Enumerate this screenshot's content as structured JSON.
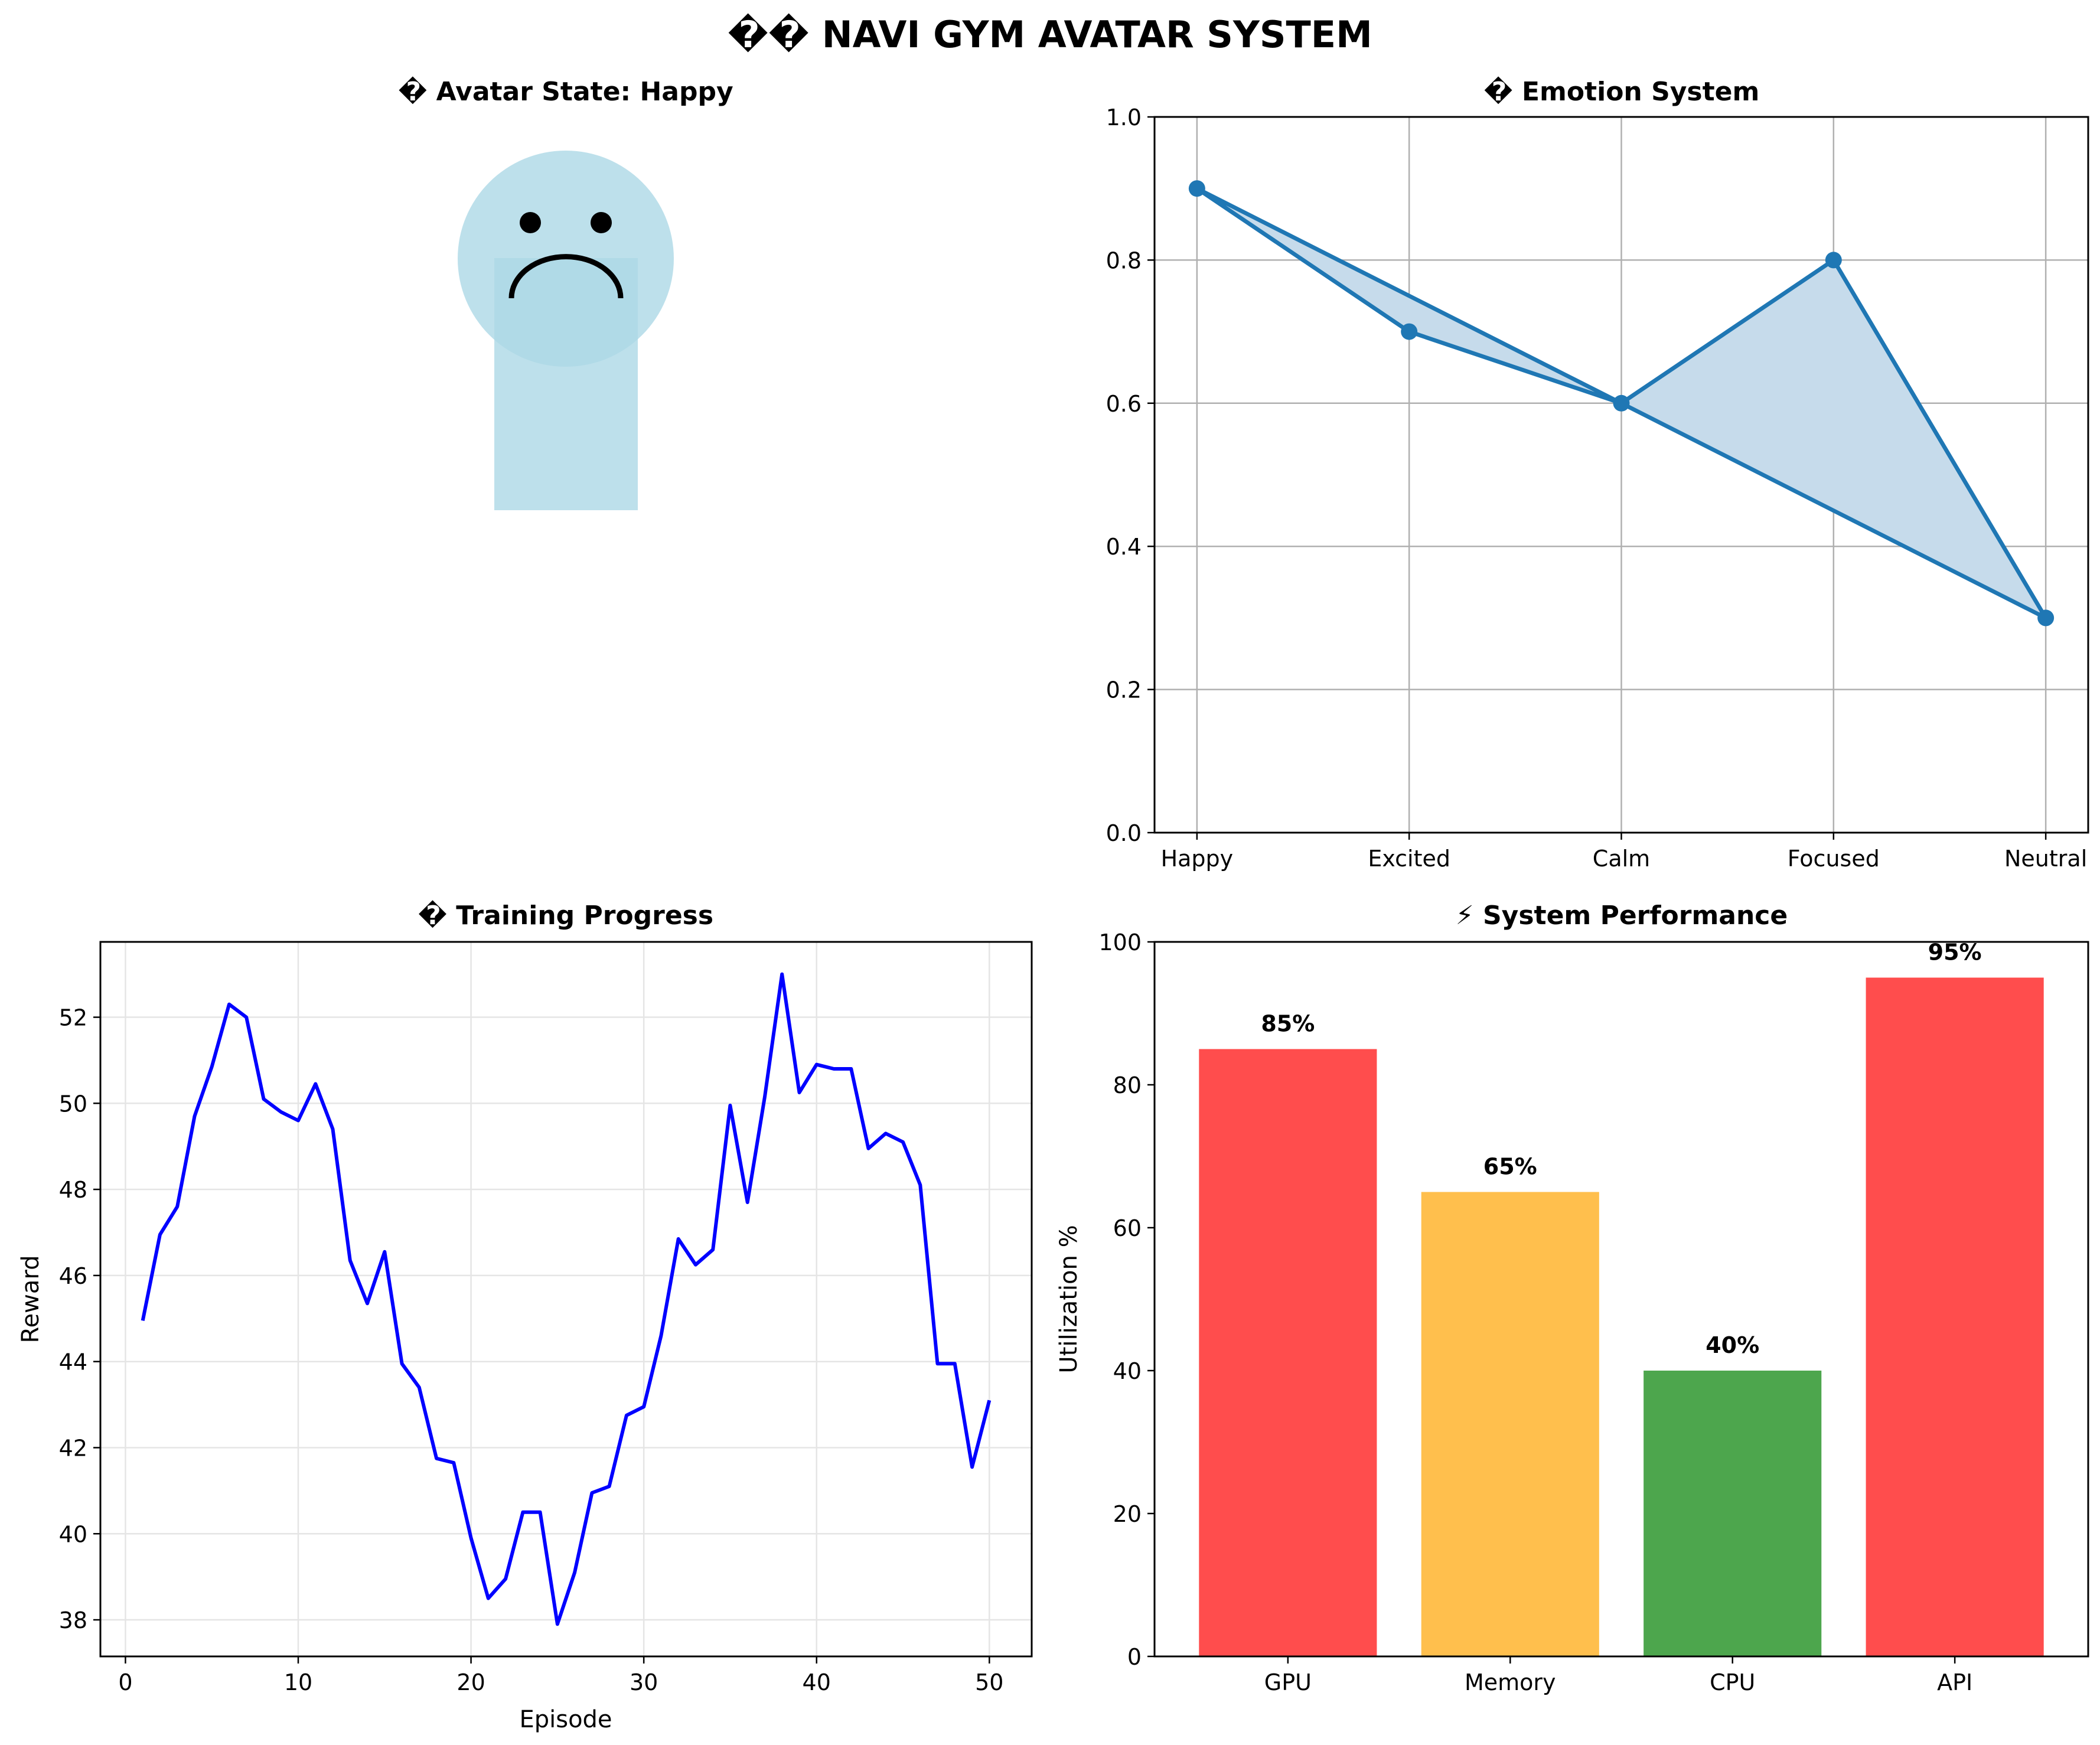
{
  "page_title": "�� NAVI GYM AVATAR SYSTEM",
  "colors": {
    "avatar": "#ADD8E6",
    "emotion_line": "#1f77b4",
    "emotion_fill": "#c6dbeb",
    "training_line": "#0000ff",
    "grid": "#b0b0b0",
    "light_grid": "#e5e5e5",
    "bar_high": "#ff4d4d",
    "bar_mid": "#ffbf4d",
    "bar_low": "#4da64d"
  },
  "avatar_panel": {
    "title": "� Avatar State: Happy",
    "state": "Happy",
    "face_expression": "frown"
  },
  "chart_data": [
    {
      "id": "emotion",
      "type": "line",
      "title": "� Emotion System",
      "categories": [
        "Happy",
        "Excited",
        "Calm",
        "Focused",
        "Neutral"
      ],
      "values": [
        0.9,
        0.7,
        0.6,
        0.8,
        0.3
      ],
      "ylim": [
        0,
        1.0
      ],
      "yticks": [
        "0.0",
        "0.2",
        "0.4",
        "0.6",
        "0.8",
        "1.0"
      ],
      "ytick_values": [
        0,
        0.2,
        0.4,
        0.6,
        0.8,
        1.0
      ],
      "grid": true,
      "fill": "closed polygon"
    },
    {
      "id": "training",
      "type": "line",
      "title": "� Training Progress",
      "xlabel": "Episode",
      "ylabel": "Reward",
      "x": [
        1,
        2,
        3,
        4,
        5,
        6,
        7,
        8,
        9,
        10,
        11,
        12,
        13,
        14,
        15,
        16,
        17,
        18,
        19,
        20,
        21,
        22,
        23,
        24,
        25,
        26,
        27,
        28,
        29,
        30,
        31,
        32,
        33,
        34,
        35,
        36,
        37,
        38,
        39,
        40,
        41,
        42,
        43,
        44,
        45,
        46,
        47,
        48,
        49,
        50
      ],
      "values": [
        44.95,
        46.95,
        47.6,
        49.7,
        50.85,
        52.3,
        52.0,
        50.1,
        49.8,
        49.6,
        50.45,
        49.4,
        46.35,
        45.35,
        46.55,
        43.95,
        43.4,
        41.75,
        41.65,
        39.9,
        38.5,
        38.95,
        40.5,
        40.5,
        37.9,
        39.1,
        40.95,
        41.1,
        42.75,
        42.95,
        44.6,
        46.85,
        46.25,
        46.6,
        49.95,
        47.7,
        50.15,
        53.0,
        50.25,
        50.9,
        50.8,
        50.8,
        48.95,
        49.3,
        49.1,
        48.1,
        43.95,
        43.95,
        41.55,
        43.1
      ],
      "xlim": [
        -1.45,
        52.45
      ],
      "ylim": [
        37.15,
        53.75
      ],
      "xticks": [
        "0",
        "10",
        "20",
        "30",
        "40",
        "50"
      ],
      "xtick_values": [
        0,
        10,
        20,
        30,
        40,
        50
      ],
      "yticks": [
        "38",
        "40",
        "42",
        "44",
        "46",
        "48",
        "50",
        "52"
      ],
      "ytick_values": [
        38,
        40,
        42,
        44,
        46,
        48,
        50,
        52
      ],
      "grid": true
    },
    {
      "id": "performance",
      "type": "bar",
      "title": "⚡ System Performance",
      "ylabel": "Utilization %",
      "categories": [
        "GPU",
        "Memory",
        "CPU",
        "API"
      ],
      "values": [
        85,
        65,
        40,
        95
      ],
      "value_labels": [
        "85%",
        "65%",
        "40%",
        "95%"
      ],
      "bar_colors": [
        "#ff4d4d",
        "#ffbf4d",
        "#4da64d",
        "#ff4d4d"
      ],
      "ylim": [
        0,
        100
      ],
      "yticks": [
        "0",
        "20",
        "40",
        "60",
        "80",
        "100"
      ],
      "ytick_values": [
        0,
        20,
        40,
        60,
        80,
        100
      ],
      "grid": false
    }
  ]
}
